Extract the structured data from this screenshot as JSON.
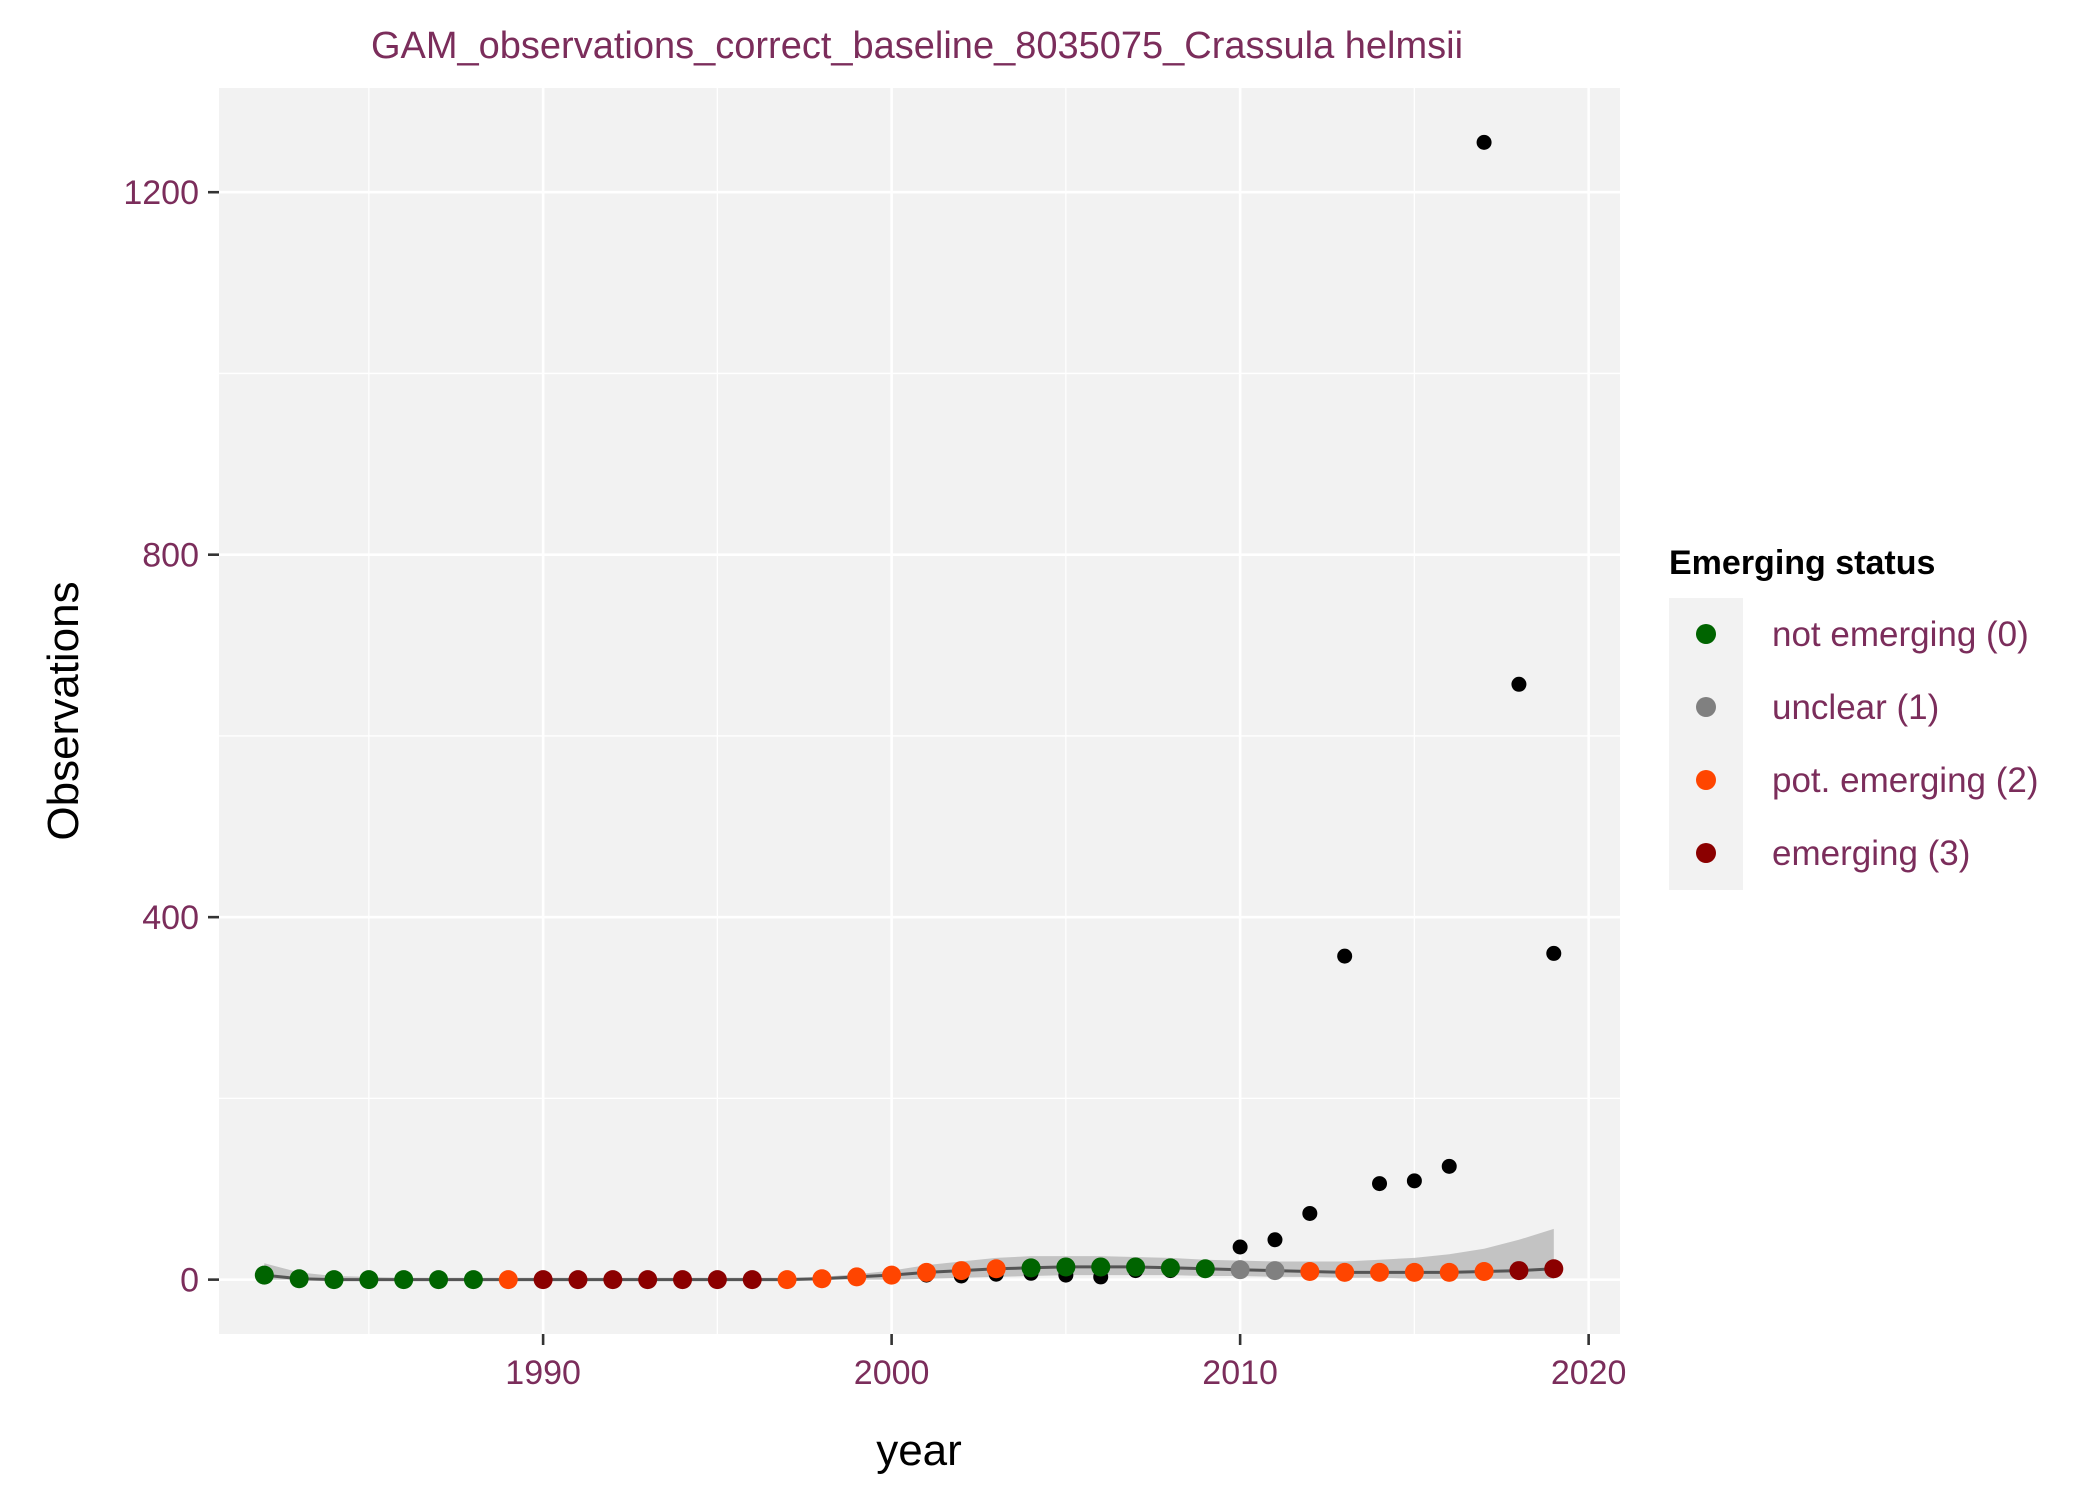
{
  "chart_data": {
    "type": "scatter",
    "title": "GAM_observations_correct_baseline_8035075_Crassula helmsii",
    "xlabel": "year",
    "ylabel": "Observations",
    "xlim": [
      1980.7,
      2020.9
    ],
    "ylim": [
      -60,
      1315
    ],
    "x_ticks": [
      1990,
      2000,
      2010,
      2020
    ],
    "x_minor_ticks": [
      1985,
      1995,
      2005,
      2015
    ],
    "y_ticks": [
      0,
      400,
      800,
      1200
    ],
    "y_minor_ticks": [
      200,
      600,
      1000
    ],
    "grid": true,
    "background_color": "#f2f2f2",
    "grid_color": "#ffffff",
    "text_color": "#7b2d5b",
    "legend": {
      "title": "Emerging status",
      "position": "right",
      "entries": [
        {
          "label": "not emerging (0)",
          "color": "#006400"
        },
        {
          "label": "unclear (1)",
          "color": "#808080"
        },
        {
          "label": "pot. emerging (2)",
          "color": "#ff4500"
        },
        {
          "label": "emerging (3)",
          "color": "#8b0000"
        }
      ]
    },
    "observations": {
      "color": "#000000",
      "x": [
        1982,
        1983,
        1984,
        1985,
        1986,
        1987,
        1988,
        1989,
        1990,
        1991,
        1992,
        1993,
        1994,
        1995,
        1996,
        1997,
        1998,
        1999,
        2000,
        2001,
        2002,
        2003,
        2004,
        2005,
        2006,
        2007,
        2008,
        2009,
        2010,
        2011,
        2012,
        2013,
        2014,
        2015,
        2016,
        2017,
        2018,
        2019
      ],
      "y": [
        3,
        1,
        0,
        0,
        0,
        0,
        0,
        0,
        0,
        0,
        0,
        0,
        0,
        0,
        0,
        0,
        0,
        2,
        5,
        5,
        4,
        6,
        7,
        5,
        3,
        10,
        10,
        13,
        36,
        44,
        73,
        357,
        106,
        109,
        125,
        1255,
        657,
        360
      ]
    },
    "gam_fit": {
      "x": [
        1982,
        1983,
        1984,
        1985,
        1986,
        1987,
        1988,
        1989,
        1990,
        1991,
        1992,
        1993,
        1994,
        1995,
        1996,
        1997,
        1998,
        1999,
        2000,
        2001,
        2002,
        2003,
        2004,
        2005,
        2006,
        2007,
        2008,
        2009,
        2010,
        2011,
        2012,
        2013,
        2014,
        2015,
        2016,
        2017,
        2018,
        2019
      ],
      "y": [
        5,
        1,
        0,
        0,
        0,
        0,
        0,
        0,
        0,
        0,
        0,
        0,
        0,
        0,
        0,
        0,
        1,
        3,
        5,
        8,
        10,
        12,
        13,
        14,
        14,
        14,
        13,
        12,
        11,
        10,
        9,
        8,
        8,
        8,
        8,
        9,
        10,
        12
      ],
      "status": [
        0,
        0,
        0,
        0,
        0,
        0,
        0,
        2,
        3,
        3,
        3,
        3,
        3,
        3,
        3,
        2,
        2,
        2,
        2,
        2,
        2,
        2,
        0,
        0,
        0,
        0,
        0,
        0,
        1,
        1,
        2,
        2,
        2,
        2,
        2,
        2,
        3,
        3
      ],
      "ci_lower": [
        0,
        0,
        0,
        0,
        0,
        0,
        0,
        0,
        0,
        0,
        0,
        0,
        0,
        0,
        0,
        0,
        0,
        0,
        0,
        1,
        2,
        3,
        4,
        5,
        5,
        5,
        5,
        4,
        4,
        3,
        3,
        2,
        2,
        1,
        1,
        1,
        1,
        1
      ],
      "ci_upper": [
        18,
        8,
        4,
        3,
        2,
        2,
        2,
        2,
        2,
        2,
        2,
        2,
        2,
        2,
        2,
        2,
        3,
        6,
        10,
        16,
        20,
        24,
        26,
        26,
        26,
        25,
        24,
        22,
        21,
        20,
        20,
        20,
        22,
        24,
        28,
        34,
        44,
        56
      ]
    }
  }
}
